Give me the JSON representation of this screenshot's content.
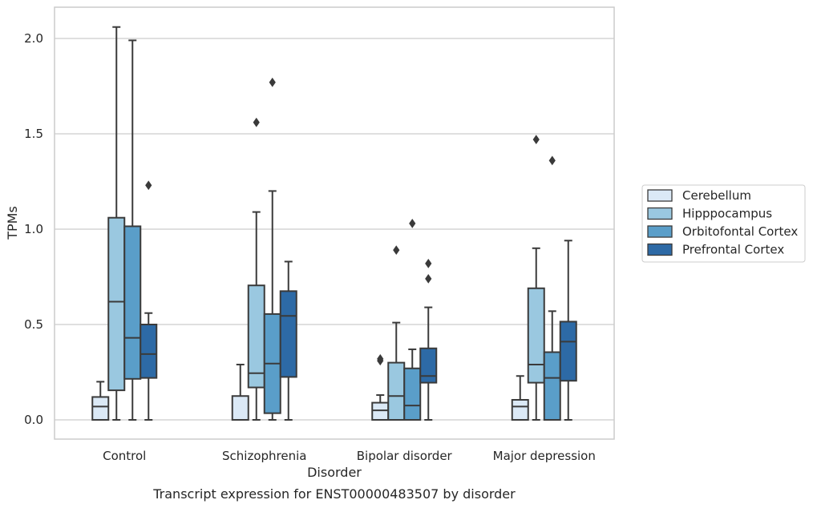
{
  "chart_data": {
    "type": "box",
    "caption": "Transcript expression for ENST00000483507 by disorder",
    "xlabel": "Disorder",
    "ylabel": "TPMs",
    "ylim": [
      -0.1,
      2.16
    ],
    "yticks": [
      "0.0",
      "0.5",
      "1.0",
      "1.5",
      "2.0"
    ],
    "grid": "horizontal",
    "legend_position": "right",
    "categories": [
      "Control",
      "Schizophrenia",
      "Bipolar disorder",
      "Major depression"
    ],
    "series": [
      {
        "name": "Cerebellum",
        "color": "#dbe9f6",
        "boxes": [
          {
            "whisker_low": 0.0,
            "q1": 0.0,
            "median": 0.07,
            "q3": 0.12,
            "whisker_high": 0.2,
            "outliers": []
          },
          {
            "whisker_low": 0.0,
            "q1": 0.0,
            "median": 0.0,
            "q3": 0.125,
            "whisker_high": 0.29,
            "outliers": []
          },
          {
            "whisker_low": 0.0,
            "q1": 0.0,
            "median": 0.05,
            "q3": 0.09,
            "whisker_high": 0.13,
            "outliers": [
              0.31,
              0.32
            ]
          },
          {
            "whisker_low": 0.0,
            "q1": 0.0,
            "median": 0.07,
            "q3": 0.105,
            "whisker_high": 0.23,
            "outliers": []
          }
        ]
      },
      {
        "name": "Hipppocampus",
        "color": "#9ac8e0",
        "boxes": [
          {
            "whisker_low": 0.0,
            "q1": 0.155,
            "median": 0.62,
            "q3": 1.06,
            "whisker_high": 2.06,
            "outliers": []
          },
          {
            "whisker_low": 0.0,
            "q1": 0.17,
            "median": 0.245,
            "q3": 0.705,
            "whisker_high": 1.09,
            "outliers": [
              1.56
            ]
          },
          {
            "whisker_low": 0.0,
            "q1": 0.0,
            "median": 0.125,
            "q3": 0.3,
            "whisker_high": 0.51,
            "outliers": [
              0.89
            ]
          },
          {
            "whisker_low": 0.0,
            "q1": 0.195,
            "median": 0.29,
            "q3": 0.69,
            "whisker_high": 0.9,
            "outliers": [
              1.47
            ]
          }
        ]
      },
      {
        "name": "Orbitofontal Cortex",
        "color": "#5a9ec9",
        "boxes": [
          {
            "whisker_low": 0.0,
            "q1": 0.215,
            "median": 0.43,
            "q3": 1.015,
            "whisker_high": 1.99,
            "outliers": []
          },
          {
            "whisker_low": 0.0,
            "q1": 0.035,
            "median": 0.295,
            "q3": 0.555,
            "whisker_high": 1.2,
            "outliers": [
              1.77
            ]
          },
          {
            "whisker_low": 0.0,
            "q1": 0.0,
            "median": 0.075,
            "q3": 0.27,
            "whisker_high": 0.37,
            "outliers": [
              1.03
            ]
          },
          {
            "whisker_low": 0.0,
            "q1": 0.0,
            "median": 0.22,
            "q3": 0.355,
            "whisker_high": 0.57,
            "outliers": [
              1.36
            ]
          }
        ]
      },
      {
        "name": "Prefrontal Cortex",
        "color": "#2d6aa6",
        "boxes": [
          {
            "whisker_low": 0.0,
            "q1": 0.22,
            "median": 0.345,
            "q3": 0.5,
            "whisker_high": 0.56,
            "outliers": [
              1.23
            ]
          },
          {
            "whisker_low": 0.0,
            "q1": 0.225,
            "median": 0.545,
            "q3": 0.675,
            "whisker_high": 0.83,
            "outliers": []
          },
          {
            "whisker_low": 0.0,
            "q1": 0.195,
            "median": 0.23,
            "q3": 0.375,
            "whisker_high": 0.59,
            "outliers": [
              0.74,
              0.82
            ]
          },
          {
            "whisker_low": 0.0,
            "q1": 0.205,
            "median": 0.41,
            "q3": 0.515,
            "whisker_high": 0.94,
            "outliers": []
          }
        ]
      }
    ]
  }
}
